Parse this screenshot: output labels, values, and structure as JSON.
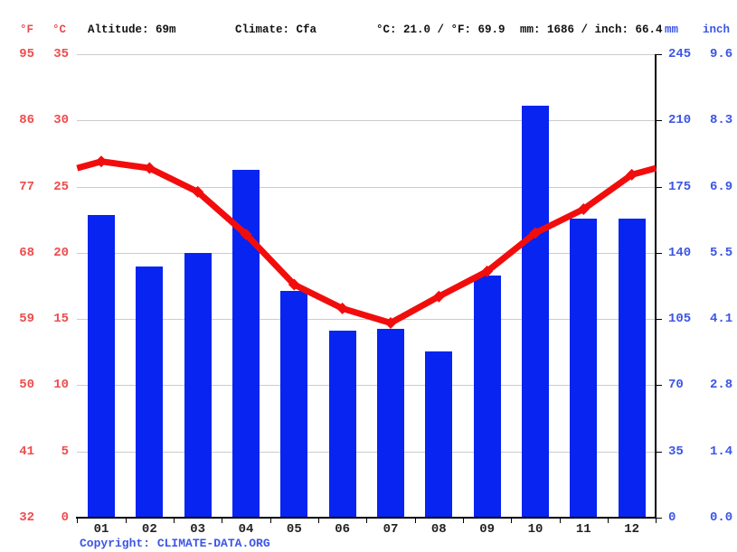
{
  "header": {
    "f_label": "°F",
    "c_label": "°C",
    "altitude": "Altitude: 69m",
    "climate": "Climate: Cfa",
    "temp_summary": "°C: 21.0 / °F: 69.9",
    "precip_summary": "mm: 1686 / inch: 66.4",
    "mm_label": "mm",
    "inch_label": "inch"
  },
  "axes": {
    "left_f": [
      "95",
      "86",
      "77",
      "68",
      "59",
      "50",
      "41",
      "32"
    ],
    "left_c": [
      "35",
      "30",
      "25",
      "20",
      "15",
      "10",
      "5",
      "0"
    ],
    "right_mm": [
      "245",
      "210",
      "175",
      "140",
      "105",
      "70",
      "35",
      "0"
    ],
    "right_inch": [
      "9.6",
      "8.3",
      "6.9",
      "5.5",
      "4.1",
      "2.8",
      "1.4",
      "0.0"
    ]
  },
  "chart_data": {
    "type": "bar+line",
    "categories": [
      "01",
      "02",
      "03",
      "04",
      "05",
      "06",
      "07",
      "08",
      "09",
      "10",
      "11",
      "12"
    ],
    "series": [
      {
        "name": "precipitation_mm",
        "type": "bar",
        "color": "#0724f0",
        "values": [
          160,
          133,
          140,
          184,
          120,
          99,
          100,
          88,
          128,
          218,
          158,
          158
        ]
      },
      {
        "name": "temperature_c",
        "type": "line",
        "color": "#f20d0d",
        "values": [
          26.9,
          26.4,
          24.6,
          21.4,
          17.6,
          15.8,
          14.7,
          16.7,
          18.6,
          21.5,
          23.3,
          25.9
        ]
      }
    ],
    "y_left_c_range": [
      0,
      35
    ],
    "y_left_f_range": [
      32,
      95
    ],
    "y_right_mm_range": [
      0,
      245
    ],
    "y_right_inch_range": [
      0.0,
      9.6
    ],
    "grid": true,
    "gridline_step_c": 5,
    "line_extends_to_edges": true,
    "annual_mean_temp_c": 21.0,
    "annual_mean_temp_f": 69.9,
    "annual_precip_mm": 1686,
    "annual_precip_inch": 66.4
  },
  "colors": {
    "bar_blue": "#0724f0",
    "line_red": "#f20d0d",
    "red_text": "#ed4c4c",
    "blue_text": "#3c55e6",
    "gridline": "#cccccc",
    "axis_black": "#000000"
  },
  "footer": {
    "copyright_prefix": "Copyright: ",
    "copyright_link": "CLIMATE-DATA.ORG"
  }
}
